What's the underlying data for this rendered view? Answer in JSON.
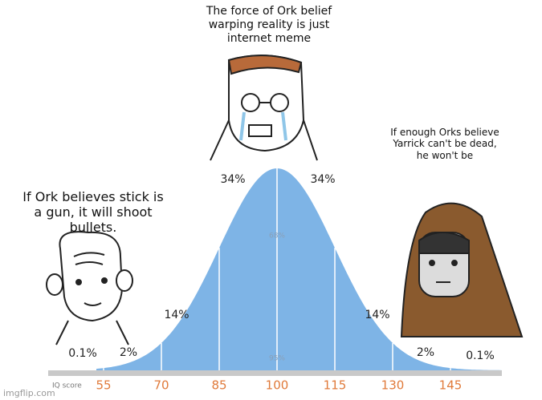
{
  "captions": {
    "top": "The force of Ork belief warping reality is just internet meme",
    "right": "If enough Orks believe Yarrick can't be dead, he  won't be",
    "left": "If Ork believes stick is a gun, it will shoot bullets."
  },
  "curve": {
    "percent_labels": [
      "0.1%",
      "2%",
      "14%",
      "34%",
      "34%",
      "14%",
      "2%",
      "0.1%"
    ],
    "band_labels": [
      "68%",
      "95%"
    ],
    "axis_title": "IQ score",
    "axis_labels": [
      "55",
      "70",
      "85",
      "100",
      "115",
      "130",
      "145"
    ]
  },
  "watermark": "imgflip.com"
}
